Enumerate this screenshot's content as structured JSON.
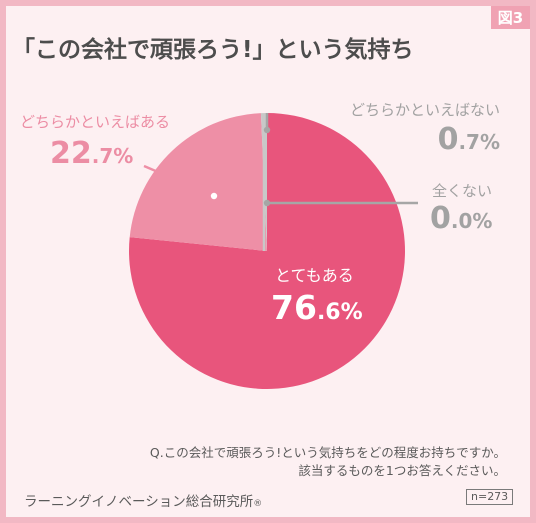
{
  "figure_label": "図3",
  "title": "「この会社で頑張ろう!」という気持ち",
  "question_lines": [
    "Q.この会社で頑張ろう!という気持ちをどの程度お持ちですか。",
    "該当するものを1つお答えください。"
  ],
  "source": "ラーニングイノベーション総合研究所",
  "source_mark": "®",
  "sample_size": "n=273",
  "colors": {
    "main": "#e8557c",
    "secondary": "#ee8fa6",
    "leader": "#a6a6a6",
    "background": "#fdf0f2",
    "frame": "#f2b8c4"
  },
  "chart_data": {
    "type": "pie",
    "start_angle_deg": 0,
    "direction": "clockwise",
    "slices": [
      {
        "label": "とてもある",
        "value": 76.6,
        "value_int": "76",
        "value_dec": ".6%",
        "color": "#e8557c"
      },
      {
        "label": "どちらかといえばある",
        "value": 22.7,
        "value_int": "22",
        "value_dec": ".7%",
        "color": "#ee8fa6"
      },
      {
        "label": "どちらかといえばない",
        "value": 0.7,
        "value_int": "0",
        "value_dec": ".7%",
        "color": "#c8c8c8"
      },
      {
        "label": "全くない",
        "value": 0.0,
        "value_int": "0",
        "value_dec": ".0%",
        "color": "#c8c8c8"
      }
    ]
  }
}
